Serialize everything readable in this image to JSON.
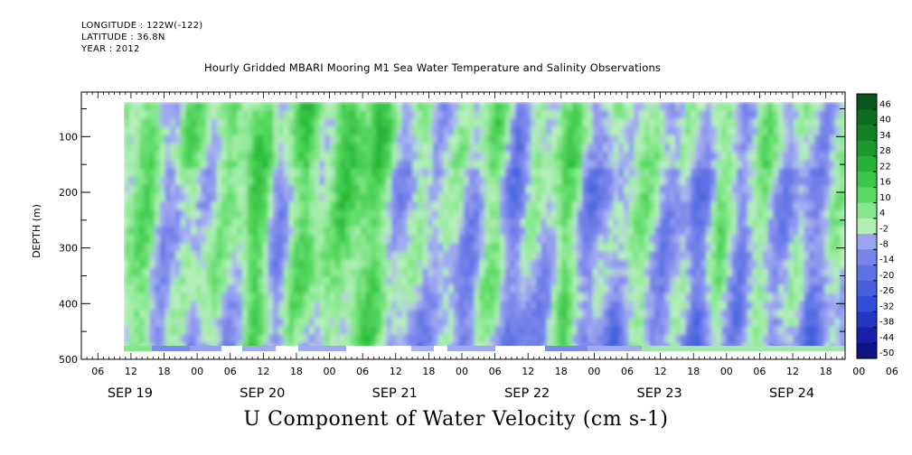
{
  "header": {
    "longitude": "LONGITUDE : 122W(-122)",
    "latitude": "LATITUDE : 36.8N",
    "year": "YEAR : 2012",
    "title": "Hourly Gridded MBARI Mooring M1 Sea Water Temperature and Salinity Observations"
  },
  "chart_data": {
    "type": "heatmap",
    "title": "U Component of Water Velocity (cm s-1)",
    "ylabel": "DEPTH (m)",
    "xlabel": "",
    "ylim": [
      500,
      0
    ],
    "y_ticks": [
      100,
      200,
      300,
      400,
      500
    ],
    "y_range_data": [
      20,
      475
    ],
    "x_hour_ticks": [
      "06",
      "12",
      "18",
      "00",
      "06",
      "12",
      "18",
      "00",
      "06",
      "12",
      "18",
      "00",
      "06",
      "12",
      "18",
      "00",
      "06",
      "12",
      "18",
      "00",
      "06",
      "12",
      "18",
      "00",
      "06",
      "12",
      "18"
    ],
    "x_day_labels": [
      "SEP 19",
      "SEP 20",
      "SEP 21",
      "SEP 22",
      "SEP 23",
      "SEP 24"
    ],
    "x_range_hours_from_sep19_00": [
      3,
      141.5
    ],
    "data_start_hour": 10,
    "colorbar": {
      "labels": [
        "46",
        "40",
        "34",
        "28",
        "22",
        "16",
        "10",
        "4",
        "-2",
        "-8",
        "-14",
        "-20",
        "-26",
        "-32",
        "-38",
        "-44",
        "-50"
      ],
      "vmin": -50,
      "vmax": 52
    },
    "grid": false,
    "legend": "right",
    "colors": {
      "positive": "#2ebe3a",
      "near_zero": "#b0f0b0",
      "negative": "#8c94ec",
      "strong_negative": "#4a5ae0"
    }
  }
}
